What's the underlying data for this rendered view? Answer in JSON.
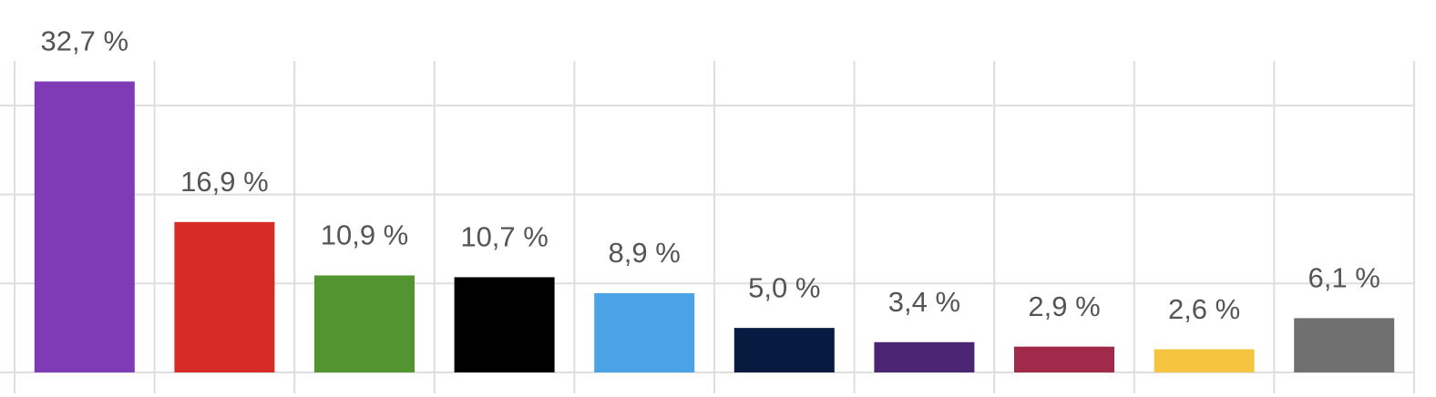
{
  "chart_data": {
    "type": "bar",
    "values": [
      32.7,
      16.9,
      10.9,
      10.7,
      8.9,
      5.0,
      3.4,
      2.9,
      2.6,
      6.1
    ],
    "value_labels": [
      "32,7 %",
      "16,9 %",
      "10,9 %",
      "10,7 %",
      "8,9 %",
      "5,0 %",
      "3,4 %",
      "2,9 %",
      "2,6 %",
      "6,1 %"
    ],
    "colors": [
      "#7e3bb5",
      "#d62b27",
      "#529530",
      "#000000",
      "#4ba2e4",
      "#071a40",
      "#4b2472",
      "#a1294a",
      "#f5c542",
      "#707070"
    ],
    "ylim": [
      0,
      35
    ],
    "yticks": [
      0,
      10,
      20,
      30
    ],
    "grid": true
  }
}
